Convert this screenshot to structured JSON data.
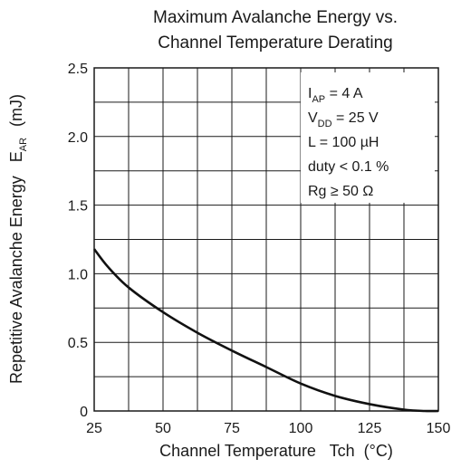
{
  "chart_data": {
    "type": "line",
    "title_line1": "Maximum Avalanche Energy vs.",
    "title_line2": "Channel Temperature Derating",
    "xlabel": "Channel Temperature   Tch  (°C)",
    "ylabel_main": "Repetitive Avalanche Energy   E",
    "ylabel_sub": "AR",
    "ylabel_unit": "(mJ)",
    "xlim": [
      25,
      150
    ],
    "ylim": [
      0,
      2.5
    ],
    "x_ticks": [
      25,
      50,
      75,
      100,
      125,
      150
    ],
    "x_tick_labels": [
      "25",
      "50",
      "75",
      "100",
      "125",
      "150"
    ],
    "y_ticks": [
      0,
      0.5,
      1.0,
      1.5,
      2.0,
      2.5
    ],
    "y_tick_labels": [
      "0",
      "0.5",
      "1.0",
      "1.5",
      "2.0",
      "2.5"
    ],
    "grid": true,
    "x_minor_step": 12.5,
    "y_minor_step": 0.25,
    "annotations": [
      {
        "main": "I",
        "sub": "AP",
        "rest": " = 4 A"
      },
      {
        "main": "V",
        "sub": "DD",
        "rest": " = 25 V"
      },
      {
        "main": "L = 100 ",
        "sub": "",
        "rest": "µH"
      },
      {
        "main": "duty < 0.1 %",
        "sub": "",
        "rest": ""
      },
      {
        "main": "Rg ≥ 50 Ω",
        "sub": "",
        "rest": ""
      }
    ],
    "series": [
      {
        "x": [
          25,
          30,
          37.5,
          50,
          62.5,
          75,
          87.5,
          100,
          112.5,
          125,
          137.5,
          145,
          150
        ],
        "y": [
          1.18,
          1.05,
          0.9,
          0.72,
          0.57,
          0.44,
          0.32,
          0.2,
          0.11,
          0.05,
          0.01,
          0.0,
          0.0
        ]
      }
    ]
  }
}
